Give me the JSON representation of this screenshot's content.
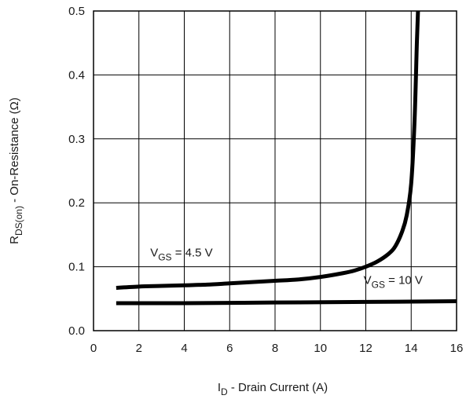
{
  "chart_data": {
    "type": "line",
    "title": "",
    "xlabel": {
      "main": "I",
      "sub": "D",
      "rest": " - Drain Current (A)"
    },
    "ylabel": {
      "main": "R",
      "sub": "DS(on)",
      "rest": "  - On-Resistance (Ω)"
    },
    "xlim": [
      0,
      16
    ],
    "ylim": [
      0,
      0.5
    ],
    "xticks": [
      {
        "value": 0,
        "label": "0"
      },
      {
        "value": 2,
        "label": "2"
      },
      {
        "value": 4,
        "label": "4"
      },
      {
        "value": 6,
        "label": "6"
      },
      {
        "value": 8,
        "label": "8"
      },
      {
        "value": 10,
        "label": "10"
      },
      {
        "value": 12,
        "label": "12"
      },
      {
        "value": 14,
        "label": "14"
      },
      {
        "value": 16,
        "label": "16"
      }
    ],
    "yticks": [
      {
        "value": 0.0,
        "label": "0.0"
      },
      {
        "value": 0.1,
        "label": "0.1"
      },
      {
        "value": 0.2,
        "label": "0.2"
      },
      {
        "value": 0.3,
        "label": "0.3"
      },
      {
        "value": 0.4,
        "label": "0.4"
      },
      {
        "value": 0.5,
        "label": "0.5"
      }
    ],
    "grid": true,
    "series": [
      {
        "annotation": {
          "main": "V",
          "sub": "GS",
          "rest": " = 4.5 V",
          "at": [
            2.5,
            0.116
          ]
        },
        "x": [
          1,
          2,
          3,
          4,
          5,
          6,
          7,
          8,
          9,
          10,
          11,
          11.5,
          12,
          12.5,
          13,
          13.3,
          13.6,
          13.8,
          14.0,
          14.15,
          14.25,
          14.3
        ],
        "y": [
          0.067,
          0.069,
          0.07,
          0.071,
          0.072,
          0.074,
          0.076,
          0.078,
          0.08,
          0.084,
          0.09,
          0.094,
          0.1,
          0.108,
          0.12,
          0.132,
          0.155,
          0.18,
          0.23,
          0.33,
          0.45,
          0.5
        ]
      },
      {
        "annotation": {
          "main": "V",
          "sub": "GS",
          "rest": " = 10 V",
          "at": [
            11.9,
            0.073
          ]
        },
        "x": [
          1,
          4,
          8,
          12,
          16
        ],
        "y": [
          0.043,
          0.043,
          0.044,
          0.045,
          0.046
        ]
      }
    ]
  }
}
